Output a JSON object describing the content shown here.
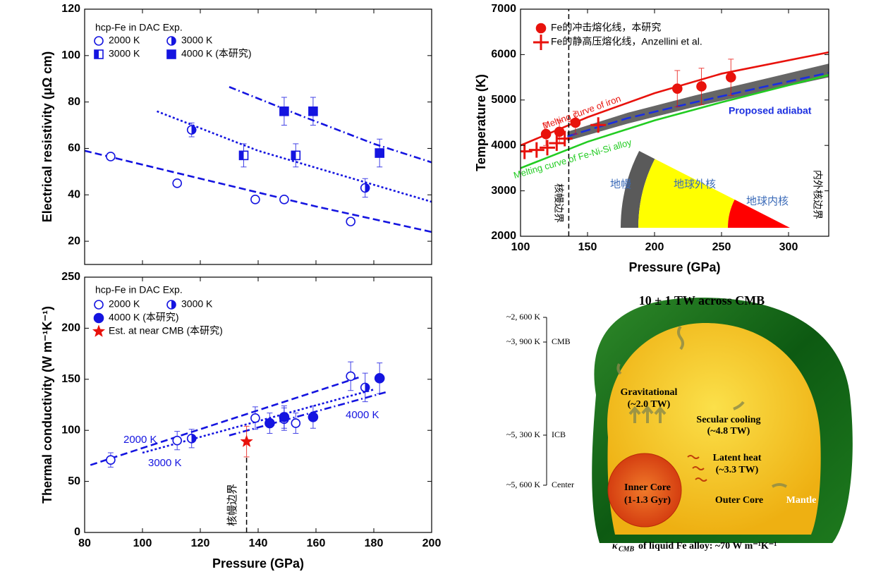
{
  "chart_data": [
    {
      "type": "scatter",
      "ylabel": "Electrical resistivity (μΩ cm)",
      "legend_title": "hcp-Fe in DAC Exp.",
      "xlim": [
        80,
        200
      ],
      "ylim": [
        10,
        120
      ],
      "xticks": [
        80,
        100,
        120,
        140,
        160,
        180,
        200
      ],
      "xtick_labels": false,
      "yticks": [
        20,
        40,
        60,
        80,
        100,
        120
      ],
      "series": [
        {
          "name": "2000 K",
          "color": "#1414e0",
          "marker": "open-circle",
          "x": [
            89,
            112,
            139,
            149,
            172
          ],
          "values": [
            56.5,
            45,
            38,
            38,
            28.5
          ]
        },
        {
          "name": "3000 K",
          "color": "#1414e0",
          "marker": "half-circle",
          "x": [
            117,
            177
          ],
          "values": [
            68,
            43
          ],
          "errors": [
            3,
            4
          ]
        },
        {
          "name": "3000 K",
          "color": "#1414e0",
          "marker": "half-square",
          "x": [
            135,
            153
          ],
          "values": [
            57,
            57
          ],
          "errors": [
            5,
            5
          ]
        },
        {
          "name": "4000 K (本研究)",
          "color": "#1414e0",
          "marker": "square",
          "x": [
            149,
            159,
            182
          ],
          "values": [
            76,
            76,
            58
          ],
          "errors": [
            6,
            6,
            6
          ]
        }
      ],
      "lines": [
        {
          "color": "#1414e0",
          "dash": "dashed",
          "x": [
            80,
            120,
            160,
            200
          ],
          "values": [
            59,
            47,
            35,
            24
          ]
        },
        {
          "color": "#1414e0",
          "dash": "dotted",
          "x": [
            105,
            140,
            170,
            200
          ],
          "values": [
            76,
            59,
            48,
            37
          ]
        },
        {
          "color": "#1414e0",
          "dash": "dashdot",
          "x": [
            130,
            155,
            180,
            200
          ],
          "values": [
            86.5,
            74,
            62,
            54
          ]
        }
      ]
    },
    {
      "type": "scatter",
      "xlabel": "Pressure (GPa)",
      "ylabel": "Thermal conductivity (W m⁻¹K⁻¹)",
      "legend_title": "hcp-Fe in DAC Exp.",
      "xlim": [
        80,
        200
      ],
      "ylim": [
        0,
        250
      ],
      "xticks": [
        80,
        100,
        120,
        140,
        160,
        180,
        200
      ],
      "yticks": [
        0,
        50,
        100,
        150,
        200,
        250
      ],
      "series": [
        {
          "name": "2000 K",
          "color": "#1414e0",
          "marker": "open-circle",
          "x": [
            89,
            112,
            139,
            149,
            153,
            172
          ],
          "values": [
            71,
            90,
            112,
            111,
            107,
            153
          ],
          "errors": [
            7,
            9,
            11,
            11,
            10,
            14
          ]
        },
        {
          "name": "3000 K",
          "color": "#1414e0",
          "marker": "half-circle",
          "x": [
            117,
            177
          ],
          "values": [
            92,
            142
          ],
          "errors": [
            9,
            14
          ]
        },
        {
          "name": "4000 K (本研究)",
          "color": "#1414e0",
          "marker": "filled-circle",
          "x": [
            144,
            149,
            159,
            182
          ],
          "values": [
            107,
            113,
            113,
            151
          ],
          "errors": [
            10,
            11,
            11,
            15
          ]
        },
        {
          "name": "Est. at near CMB (本研究)",
          "color": "#e8120c",
          "marker": "star",
          "x": [
            136
          ],
          "values": [
            89
          ],
          "errors": [
            15
          ]
        }
      ],
      "lines": [
        {
          "color": "#1414e0",
          "dash": "dashed",
          "x": [
            82,
            175
          ],
          "values": [
            66,
            152
          ]
        },
        {
          "color": "#1414e0",
          "dash": "dotted",
          "x": [
            100,
            180
          ],
          "values": [
            78,
            140
          ]
        },
        {
          "color": "#1414e0",
          "dash": "dashdot",
          "x": [
            130,
            185
          ],
          "values": [
            95,
            138
          ]
        }
      ],
      "vline": 136,
      "annotations": [
        "2000 K",
        "3000 K",
        "4000 K",
        "核幔边界"
      ]
    },
    {
      "type": "scatter",
      "xlabel": "Pressure (GPa)",
      "ylabel": "Temperature (K)",
      "legend": "upper left",
      "xlim": [
        100,
        330
      ],
      "ylim": [
        2000,
        7000
      ],
      "xticks": [
        100,
        150,
        200,
        250,
        300
      ],
      "yticks": [
        2000,
        3000,
        4000,
        5000,
        6000,
        7000
      ],
      "series": [
        {
          "name": "Fe的冲击熔化线，本研究",
          "color": "#e8120c",
          "marker": "filled-circle",
          "x": [
            119,
            129,
            141,
            217,
            235,
            257
          ],
          "values": [
            4250,
            4300,
            4500,
            5250,
            5300,
            5500
          ],
          "errors": [
            250,
            250,
            250,
            400,
            400,
            400
          ]
        },
        {
          "name": "Fe的静高压熔化线，Anzellini et al.",
          "color": "#e8120c",
          "marker": "cross",
          "x": [
            103,
            112,
            120,
            127,
            133,
            158
          ],
          "values": [
            3870,
            3900,
            3950,
            4050,
            4150,
            4450
          ]
        }
      ],
      "band": {
        "color": "#666666",
        "x": [
          135,
          180,
          230,
          280,
          330
        ],
        "lower": [
          4100,
          4480,
          4850,
          5180,
          5500
        ],
        "upper": [
          4300,
          4720,
          5100,
          5450,
          5800
        ]
      },
      "lines": [
        {
          "color": "#e8120c",
          "dash": "solid",
          "x": [
            100,
            150,
            200,
            250,
            330
          ],
          "values": [
            4000,
            4620,
            5150,
            5580,
            6050
          ]
        },
        {
          "color": "#1a2ee0",
          "dash": "longdash",
          "x": [
            135,
            180,
            230,
            280,
            330
          ],
          "values": [
            4200,
            4600,
            4950,
            5280,
            5600
          ]
        },
        {
          "color": "#22cc22",
          "dash": "solid",
          "x": [
            100,
            150,
            200,
            250,
            330
          ],
          "values": [
            3500,
            4080,
            4550,
            4950,
            5550
          ]
        }
      ],
      "vline": 136,
      "annotations": [
        "Melting curve of iron",
        "Proposed adiabat",
        "Melting curve of Fe-Ni-Si alloy",
        "核幔边界",
        "地幔",
        "地球外核",
        "地球内核",
        "内外核边界"
      ]
    }
  ],
  "diagram": {
    "title": "10 ± 1 TW across CMB",
    "scale": {
      "temps": [
        "~2, 600 K",
        "~3, 900 K",
        "~5, 300 K",
        "~5, 600 K"
      ],
      "boundaries": [
        "CMB",
        "ICB",
        "Center"
      ]
    },
    "gravitational": [
      "Gravitational",
      "(~2.0 TW)"
    ],
    "secular": [
      "Secular cooling",
      "(~4.8 TW)"
    ],
    "latent": [
      "Latent heat",
      "(~3.3 TW)"
    ],
    "inner_core": [
      "Inner Core",
      "(1-1.3 Gyr)"
    ],
    "outer_core": "Outer Core",
    "mantle": "Mantle",
    "caption": {
      "symbol": "κ",
      "sub": "CMB",
      "text": "of liquid Fe alloy: ~70 W m⁻¹K⁻¹"
    }
  }
}
